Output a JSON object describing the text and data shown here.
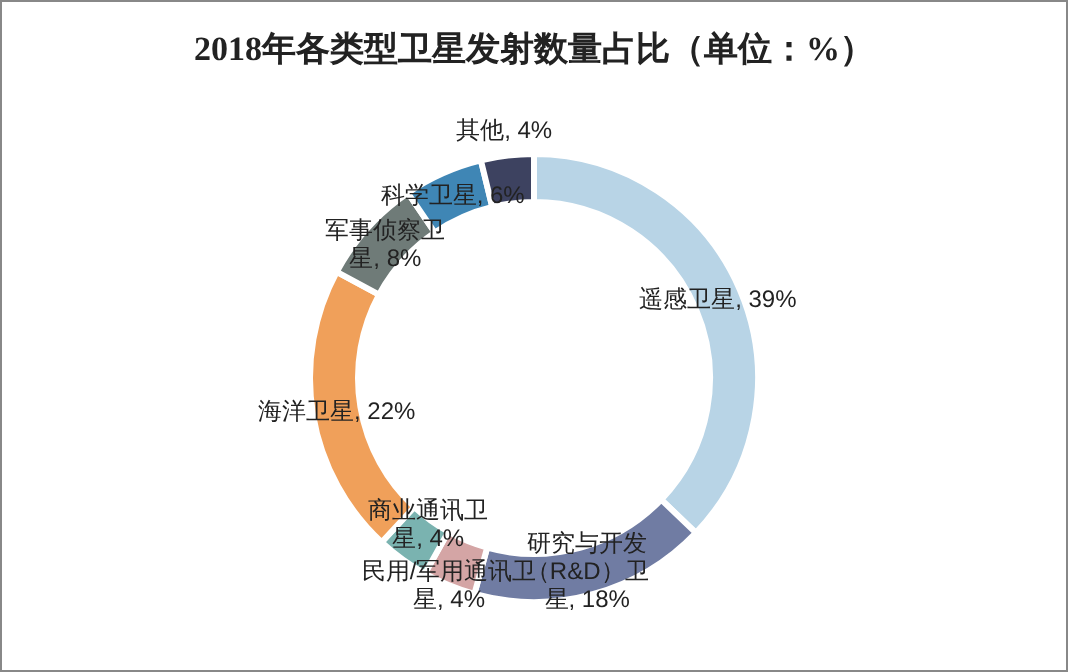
{
  "chart_data": {
    "type": "donut",
    "title": "2018年各类型卫星发射数量占比（单位：%）",
    "categories": [
      "遥感卫星",
      "研究与开发（R&D）卫星",
      "民用/军用通讯卫星",
      "商业通讯卫星",
      "海洋卫星",
      "军事侦察卫星",
      "科学卫星",
      "其他"
    ],
    "values": [
      39,
      18,
      4,
      4,
      22,
      8,
      6,
      4
    ],
    "value_labels": [
      "39%",
      "18%",
      "4%",
      "4%",
      "22%",
      "8%",
      "6%",
      "4%"
    ],
    "colors": [
      "#b8d4e6",
      "#707ca3",
      "#d4a5a5",
      "#7ab3b0",
      "#f0a05a",
      "#6f7b78",
      "#3f86b5",
      "#3d4260"
    ],
    "legend": false
  }
}
